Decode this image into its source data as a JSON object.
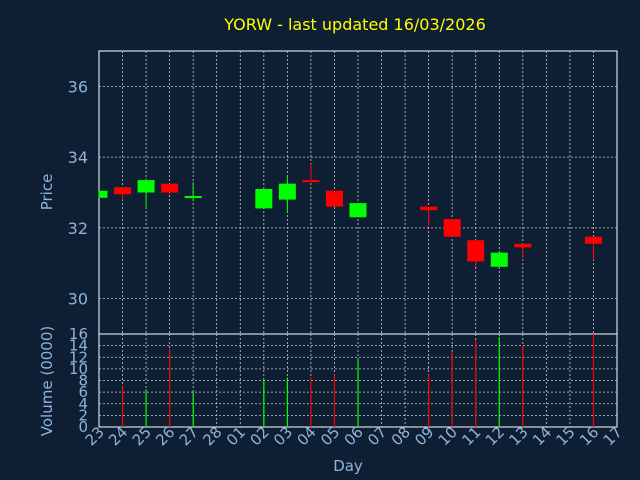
{
  "chart_data": [
    {
      "type": "candlestick",
      "title": "YORW - last updated 16/03/2026",
      "ylabel": "Price",
      "ylim": [
        29.0,
        37.0
      ],
      "yticks": [
        "30",
        "32",
        "34",
        "36"
      ],
      "grid": true,
      "colors": {
        "up": "#00ff00",
        "down": "#ff0000",
        "title": "#ffff00",
        "axis_text": "#8fb3d9",
        "grid": "#cccccc",
        "background": "#0f1f33"
      },
      "categories": [
        "23",
        "24",
        "25",
        "26",
        "27",
        "28",
        "01",
        "02",
        "03",
        "04",
        "05",
        "06",
        "07",
        "08",
        "09",
        "10",
        "11",
        "12",
        "13",
        "14",
        "15",
        "16",
        "17"
      ],
      "candles": [
        {
          "day": "23",
          "open": 32.85,
          "high": 33.05,
          "low": 32.85,
          "close": 33.05
        },
        {
          "day": "24",
          "open": 33.15,
          "high": 33.15,
          "low": 32.8,
          "close": 32.95
        },
        {
          "day": "25",
          "open": 33.0,
          "high": 33.4,
          "low": 32.55,
          "close": 33.35
        },
        {
          "day": "26",
          "open": 33.25,
          "high": 33.25,
          "low": 32.95,
          "close": 33.0
        },
        {
          "day": "27",
          "open": 32.85,
          "high": 33.3,
          "low": 32.75,
          "close": 32.9
        },
        {
          "day": "02",
          "open": 32.55,
          "high": 33.1,
          "low": 32.55,
          "close": 33.1
        },
        {
          "day": "03",
          "open": 32.8,
          "high": 33.45,
          "low": 32.45,
          "close": 33.25
        },
        {
          "day": "04",
          "open": 33.35,
          "high": 33.8,
          "low": 33.3,
          "close": 33.3
        },
        {
          "day": "05",
          "open": 33.05,
          "high": 33.05,
          "low": 32.6,
          "close": 32.6
        },
        {
          "day": "06",
          "open": 32.3,
          "high": 32.7,
          "low": 32.3,
          "close": 32.7
        },
        {
          "day": "09",
          "open": 32.6,
          "high": 32.6,
          "low": 32.05,
          "close": 32.5
        },
        {
          "day": "10",
          "open": 32.25,
          "high": 32.25,
          "low": 31.75,
          "close": 31.75
        },
        {
          "day": "11",
          "open": 31.65,
          "high": 31.65,
          "low": 30.9,
          "close": 31.05
        },
        {
          "day": "12",
          "open": 30.9,
          "high": 31.3,
          "low": 30.9,
          "close": 31.3
        },
        {
          "day": "13",
          "open": 31.55,
          "high": 31.55,
          "low": 31.15,
          "close": 31.45
        },
        {
          "day": "16",
          "open": 31.75,
          "high": 31.75,
          "low": 31.1,
          "close": 31.55
        }
      ]
    },
    {
      "type": "bar",
      "xlabel": "Day",
      "ylabel": "Volume (0000)",
      "ylim": [
        0,
        16
      ],
      "yticks": [
        "0",
        "2",
        "4",
        "6",
        "8",
        "10",
        "12",
        "14",
        "16"
      ],
      "grid": true,
      "categories": [
        "23",
        "24",
        "25",
        "26",
        "27",
        "28",
        "01",
        "02",
        "03",
        "04",
        "05",
        "06",
        "07",
        "08",
        "09",
        "10",
        "11",
        "12",
        "13",
        "14",
        "15",
        "16",
        "17"
      ],
      "bars": [
        {
          "day": "24",
          "value": 7,
          "direction": "down"
        },
        {
          "day": "25",
          "value": 6.5,
          "direction": "up"
        },
        {
          "day": "26",
          "value": 13.5,
          "direction": "down"
        },
        {
          "day": "27",
          "value": 6,
          "direction": "up"
        },
        {
          "day": "02",
          "value": 8,
          "direction": "up"
        },
        {
          "day": "03",
          "value": 8.5,
          "direction": "up"
        },
        {
          "day": "04",
          "value": 8.5,
          "direction": "down"
        },
        {
          "day": "05",
          "value": 9,
          "direction": "down"
        },
        {
          "day": "06",
          "value": 11.5,
          "direction": "up"
        },
        {
          "day": "09",
          "value": 9,
          "direction": "down"
        },
        {
          "day": "10",
          "value": 13,
          "direction": "down"
        },
        {
          "day": "11",
          "value": 15,
          "direction": "down"
        },
        {
          "day": "12",
          "value": 15.5,
          "direction": "up"
        },
        {
          "day": "13",
          "value": 14,
          "direction": "down"
        },
        {
          "day": "16",
          "value": 16,
          "direction": "down"
        }
      ]
    }
  ]
}
